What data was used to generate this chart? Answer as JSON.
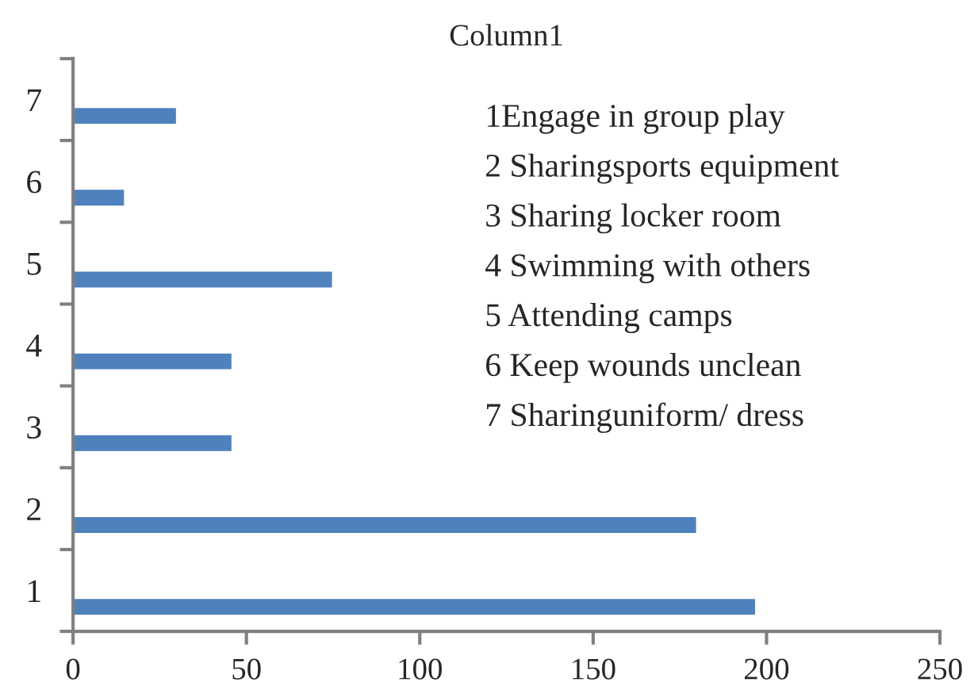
{
  "chart_data": {
    "type": "bar",
    "orientation": "horizontal",
    "title": "Column1",
    "categories": [
      "7",
      "6",
      "5",
      "4",
      "3",
      "2",
      "1"
    ],
    "values": [
      30,
      15,
      75,
      46,
      46,
      180,
      197
    ],
    "color": "#4f81bd",
    "xlim": [
      0,
      250
    ],
    "xticks": [
      0,
      50,
      100,
      150,
      200,
      250
    ],
    "grid": false,
    "legend": false,
    "annotations": [
      "1Engage in group play",
      "2 Sharingsports equipment",
      "3 Sharing locker room",
      "4 Swimming with others",
      "5 Attending camps",
      "6 Keep wounds unclean",
      "7 Sharinguniform/ dress"
    ]
  }
}
